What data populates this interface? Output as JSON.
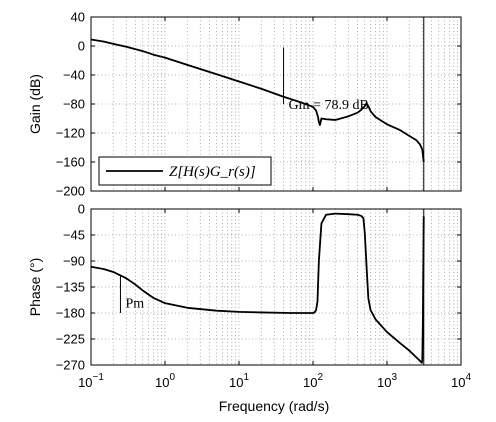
{
  "chart_data": [
    {
      "type": "line",
      "panel": "gain",
      "ylabel": "Gain (dB)",
      "xlabel": "",
      "xscale": "log",
      "xlim": [
        0.1,
        10000
      ],
      "ylim": [
        -200,
        40
      ],
      "yticks": [
        40,
        0,
        -40,
        -80,
        -120,
        -160,
        -200
      ],
      "ytick_labels": [
        "40",
        "0",
        "−40",
        "−80",
        "−120",
        "−160",
        "−200"
      ],
      "grid": true,
      "legend": {
        "placement": "bottom-left",
        "label": "Z[H(s)G_r(s)]"
      },
      "series": [
        {
          "name": "Z[H(s)G_r(s)]",
          "x": [
            0.1,
            0.15,
            0.2,
            0.3,
            0.5,
            0.7,
            1,
            2,
            5,
            10,
            20,
            40,
            70,
            100,
            110,
            117,
            120,
            124,
            130,
            150,
            200,
            300,
            400,
            450,
            500,
            530,
            560,
            600,
            700,
            1000,
            1500,
            2000,
            2500,
            2800,
            3000,
            3140
          ],
          "y": [
            9,
            6,
            3,
            -1,
            -7,
            -12,
            -16,
            -26,
            -39,
            -49,
            -59,
            -70,
            -78,
            -84,
            -89,
            -98,
            -105,
            -109,
            -100,
            -101,
            -102,
            -97,
            -92,
            -88,
            -83,
            -79,
            -83,
            -90,
            -98,
            -108,
            -116,
            -124,
            -130,
            -136,
            -143,
            -160
          ]
        }
      ],
      "annotations": [
        {
          "text": "Gm = 78.9 dB",
          "x": 40,
          "y": -80,
          "marker_from": -80,
          "marker_to": -2
        }
      ],
      "vertical_line": {
        "x": 3140
      }
    },
    {
      "type": "line",
      "panel": "phase",
      "xlabel": "Frequency  (rad/s)",
      "ylabel": "Phase (°)",
      "xscale": "log",
      "xlim": [
        0.1,
        10000
      ],
      "ylim": [
        -270,
        0
      ],
      "yticks": [
        0,
        -45,
        -90,
        -135,
        -180,
        -225,
        -270
      ],
      "ytick_labels": [
        "0",
        "−45",
        "−90",
        "−135",
        "−180",
        "−225",
        "−270"
      ],
      "xticks": [
        0.1,
        1,
        10,
        100,
        1000,
        10000
      ],
      "xtick_labels": [
        {
          "base": "10",
          "exp": "−1"
        },
        {
          "base": "10",
          "exp": "0"
        },
        {
          "base": "10",
          "exp": "1"
        },
        {
          "base": "10",
          "exp": "2"
        },
        {
          "base": "10",
          "exp": "3"
        },
        {
          "base": "10",
          "exp": "4"
        }
      ],
      "grid": true,
      "series": [
        {
          "name": "Z[H(s)G_r(s)]",
          "x": [
            0.1,
            0.15,
            0.2,
            0.25,
            0.3,
            0.4,
            0.5,
            0.7,
            1,
            2,
            5,
            10,
            20,
            50,
            80,
            100,
            105,
            110,
            115,
            120,
            130,
            150,
            200,
            300,
            400,
            450,
            480,
            500,
            520,
            540,
            560,
            600,
            700,
            1000,
            1500,
            2000,
            2500,
            2800,
            2950,
            3000,
            3050,
            3140
          ],
          "y": [
            -100,
            -104,
            -109,
            -115,
            -120,
            -131,
            -141,
            -154,
            -163,
            -171,
            -176,
            -178,
            -179,
            -180,
            -180,
            -180,
            -179,
            -175,
            -160,
            -90,
            -25,
            -10,
            -8,
            -9,
            -10,
            -12,
            -16,
            -40,
            -80,
            -120,
            -155,
            -175,
            -191,
            -213,
            -232,
            -245,
            -257,
            -263,
            -266,
            -262,
            -200,
            -13
          ]
        }
      ],
      "annotations": [
        {
          "text": "Pm",
          "x": 0.25,
          "y": -162,
          "marker_from": -180,
          "marker_to": -115
        }
      ],
      "vertical_line": {
        "x": 3140
      }
    }
  ]
}
